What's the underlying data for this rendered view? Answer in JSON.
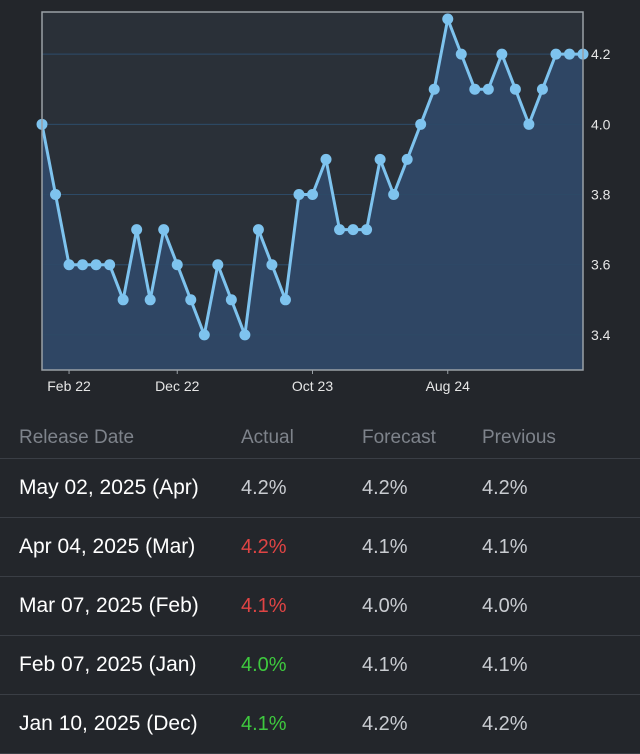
{
  "chart_data": {
    "type": "area",
    "x": [
      0,
      1,
      2,
      3,
      4,
      5,
      6,
      7,
      8,
      9,
      10,
      11,
      12,
      13,
      14,
      15,
      16,
      17,
      18,
      19,
      20,
      21,
      22,
      23,
      24,
      25,
      26,
      27,
      28,
      29,
      30,
      31,
      32,
      33,
      34,
      35,
      36,
      37,
      38,
      39,
      40
    ],
    "values": [
      4.0,
      3.8,
      3.6,
      3.6,
      3.6,
      3.6,
      3.5,
      3.7,
      3.5,
      3.7,
      3.6,
      3.5,
      3.4,
      3.6,
      3.5,
      3.4,
      3.7,
      3.6,
      3.5,
      3.8,
      3.8,
      3.9,
      3.7,
      3.7,
      3.7,
      3.9,
      3.8,
      3.9,
      4.0,
      4.1,
      4.3,
      4.2,
      4.1,
      4.1,
      4.2,
      4.1,
      4.0,
      4.1,
      4.2,
      4.2,
      4.2
    ],
    "x_ticks": [
      {
        "index": 2,
        "label": "Feb 22"
      },
      {
        "index": 10,
        "label": "Dec 22"
      },
      {
        "index": 20,
        "label": "Oct 23"
      },
      {
        "index": 30,
        "label": "Aug 24"
      }
    ],
    "y_ticks": [
      3.4,
      3.6,
      3.8,
      4.0,
      4.2
    ],
    "ylim": [
      3.3,
      4.32
    ],
    "colors": {
      "line": "#7ec3ee",
      "fill": "#2f4866",
      "plot_bg": "#2a3038",
      "grid": "#2d4a66",
      "border": "#9aa0a6"
    }
  },
  "table": {
    "headers": {
      "date": "Release Date",
      "actual": "Actual",
      "forecast": "Forecast",
      "previous": "Previous"
    },
    "rows": [
      {
        "date": "May 02, 2025 (Apr)",
        "actual": "4.2%",
        "actual_status": "neutral",
        "forecast": "4.2%",
        "previous": "4.2%"
      },
      {
        "date": "Apr 04, 2025 (Mar)",
        "actual": "4.2%",
        "actual_status": "red",
        "forecast": "4.1%",
        "previous": "4.1%"
      },
      {
        "date": "Mar 07, 2025 (Feb)",
        "actual": "4.1%",
        "actual_status": "red",
        "forecast": "4.0%",
        "previous": "4.0%"
      },
      {
        "date": "Feb 07, 2025 (Jan)",
        "actual": "4.0%",
        "actual_status": "green",
        "forecast": "4.1%",
        "previous": "4.1%"
      },
      {
        "date": "Jan 10, 2025 (Dec)",
        "actual": "4.1%",
        "actual_status": "green",
        "forecast": "4.2%",
        "previous": "4.2%"
      }
    ]
  }
}
